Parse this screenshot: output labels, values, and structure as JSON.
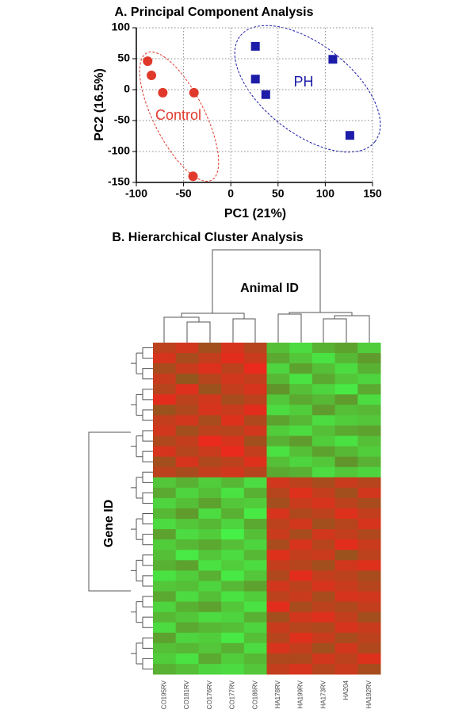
{
  "chart_data": [
    {
      "type": "scatter",
      "title": "A. Principal Component Analysis",
      "x_label": "PC1 (21%)",
      "y_label": "PC2 (16.5%)",
      "xlim": [
        -100,
        150
      ],
      "xticks": [
        -100,
        -50,
        0,
        50,
        100,
        150
      ],
      "ylim": [
        -150,
        100
      ],
      "yticks": [
        -150,
        -100,
        -50,
        0,
        50,
        100
      ],
      "grid": true,
      "series": [
        {
          "name": "Control",
          "color": "#e0392b",
          "marker": "circle",
          "x": [
            -88,
            -84,
            -72,
            -39,
            -40
          ],
          "values": [
            46,
            23,
            -5,
            -5,
            -140
          ]
        },
        {
          "name": "PH",
          "color": "#1c1ca8",
          "marker": "square",
          "x": [
            26,
            26,
            37,
            108,
            126
          ],
          "values": [
            70,
            17,
            -8,
            49,
            -74
          ]
        }
      ]
    },
    {
      "type": "heatmap",
      "title": "B. Hierarchical Cluster Analysis",
      "columns_label": "Animal ID",
      "rows_label": "Gene ID",
      "low_color": "#46f046",
      "mid_color": "#6e6a1e",
      "high_color": "#ea2a1c",
      "columns": [
        "CO195RV",
        "CO181RV",
        "CO176RV",
        "CO177RV",
        "CO186RV",
        "HA178RV",
        "HA199RV",
        "HA173RV",
        "HA204",
        "HA192RV"
      ],
      "values": [
        [
          1.2,
          1.5,
          0.8,
          1.6,
          1.1,
          -1.2,
          -1.6,
          -1.0,
          -0.8,
          -1.4
        ],
        [
          1.6,
          0.9,
          1.3,
          1.8,
          1.4,
          -0.9,
          -1.3,
          -1.7,
          -1.1,
          -0.7
        ],
        [
          0.9,
          1.4,
          1.7,
          1.2,
          1.9,
          -1.5,
          -0.8,
          -1.2,
          -1.6,
          -1.0
        ],
        [
          1.4,
          0.6,
          1.1,
          1.5,
          1.3,
          -1.1,
          -1.7,
          -0.9,
          -1.3,
          -1.5
        ],
        [
          1.1,
          1.7,
          0.7,
          1.3,
          1.6,
          -0.6,
          -1.2,
          -1.5,
          -1.8,
          -0.9
        ],
        [
          1.8,
          1.2,
          1.5,
          0.9,
          1.2,
          -1.3,
          -0.9,
          -1.1,
          -0.7,
          -1.6
        ],
        [
          0.7,
          1.0,
          1.6,
          1.4,
          1.8,
          -1.6,
          -1.4,
          -0.7,
          -1.2,
          -1.1
        ],
        [
          1.3,
          1.5,
          0.9,
          1.7,
          1.0,
          -0.8,
          -1.1,
          -1.6,
          -1.4,
          -1.3
        ],
        [
          1.5,
          0.8,
          1.2,
          1.1,
          1.5,
          -1.4,
          -1.6,
          -1.2,
          -0.9,
          -0.8
        ],
        [
          1.0,
          1.3,
          1.9,
          1.6,
          0.8,
          -1.0,
          -0.7,
          -1.4,
          -1.7,
          -1.2
        ],
        [
          1.6,
          1.1,
          1.4,
          1.9,
          1.3,
          -1.7,
          -1.2,
          -0.8,
          -1.1,
          -1.4
        ],
        [
          0.8,
          1.6,
          1.0,
          1.2,
          1.7,
          -1.2,
          -1.5,
          -1.3,
          -0.6,
          -1.0
        ],
        [
          1.2,
          0.9,
          1.3,
          1.5,
          1.1,
          -0.9,
          -1.0,
          -1.6,
          -1.3,
          -1.5
        ],
        [
          -1.3,
          -1.0,
          -1.4,
          -1.1,
          -1.6,
          1.5,
          1.2,
          0.9,
          1.4,
          1.1
        ],
        [
          -0.9,
          -1.5,
          -1.2,
          -1.7,
          -1.0,
          1.1,
          1.7,
          1.3,
          0.8,
          1.5
        ],
        [
          -1.5,
          -1.2,
          -0.8,
          -1.3,
          -1.4,
          0.8,
          1.4,
          1.6,
          1.2,
          0.9
        ],
        [
          -1.1,
          -0.7,
          -1.6,
          -1.0,
          -1.8,
          1.6,
          1.0,
          1.2,
          1.7,
          1.3
        ],
        [
          -1.6,
          -1.3,
          -1.1,
          -1.5,
          -0.9,
          1.2,
          1.5,
          0.8,
          1.1,
          1.6
        ],
        [
          -0.8,
          -1.6,
          -1.4,
          -1.9,
          -1.2,
          1.4,
          0.9,
          1.5,
          1.3,
          1.0
        ],
        [
          -1.4,
          -1.1,
          -0.9,
          -1.2,
          -1.5,
          0.9,
          1.6,
          1.1,
          1.8,
          1.4
        ],
        [
          -1.2,
          -1.8,
          -1.3,
          -1.6,
          -1.1,
          1.7,
          1.3,
          1.4,
          0.7,
          1.2
        ],
        [
          -1.0,
          -0.8,
          -1.7,
          -1.4,
          -1.6,
          1.3,
          1.1,
          0.8,
          1.5,
          1.7
        ],
        [
          -1.7,
          -1.4,
          -1.0,
          -1.8,
          -1.3,
          1.0,
          1.8,
          1.3,
          1.2,
          0.9
        ],
        [
          -1.3,
          -1.2,
          -1.5,
          -1.1,
          -0.8,
          1.5,
          1.2,
          1.6,
          1.4,
          1.1
        ],
        [
          -0.9,
          -1.6,
          -1.2,
          -1.7,
          -1.4,
          1.2,
          1.4,
          0.9,
          1.6,
          1.5
        ],
        [
          -1.5,
          -1.0,
          -0.8,
          -1.3,
          -1.7,
          1.8,
          0.9,
          1.2,
          1.0,
          1.3
        ],
        [
          -1.1,
          -1.3,
          -1.6,
          -1.5,
          -1.0,
          0.8,
          1.5,
          1.7,
          1.3,
          0.8
        ],
        [
          -1.6,
          -0.9,
          -1.1,
          -1.2,
          -1.5,
          1.4,
          1.1,
          1.0,
          1.6,
          1.4
        ],
        [
          -0.8,
          -1.5,
          -1.4,
          -1.8,
          -1.2,
          1.1,
          1.7,
          1.4,
          0.9,
          1.2
        ],
        [
          -1.2,
          -1.1,
          -1.3,
          -1.0,
          -1.6,
          1.6,
          1.3,
          0.8,
          1.5,
          1.0
        ],
        [
          -1.4,
          -1.7,
          -0.9,
          -1.4,
          -1.1,
          1.0,
          1.0,
          1.5,
          1.2,
          1.7
        ],
        [
          -1.0,
          -1.2,
          -1.5,
          -1.6,
          -1.3,
          1.3,
          1.6,
          1.1,
          1.4,
          0.9
        ]
      ]
    }
  ]
}
